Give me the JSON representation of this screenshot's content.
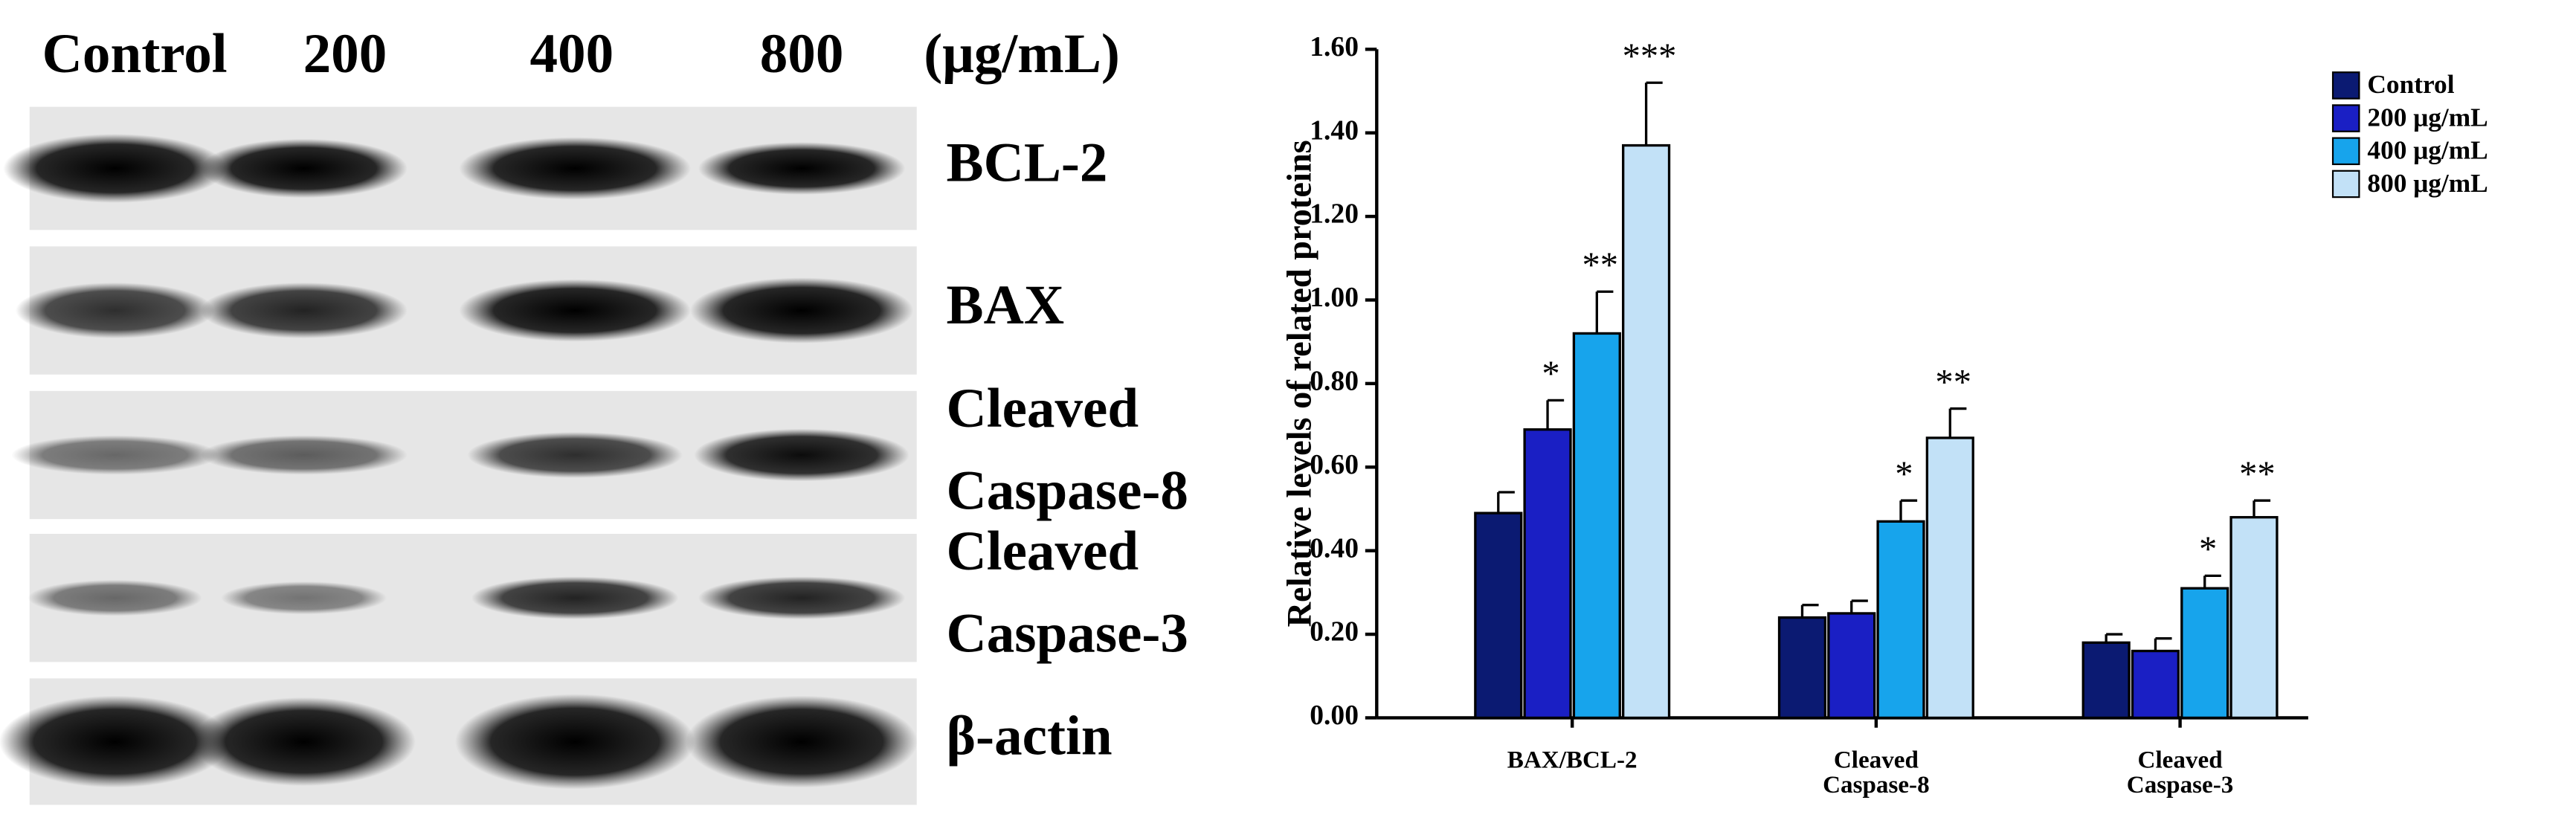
{
  "blot": {
    "columns": [
      "Control",
      "200",
      "400",
      "800"
    ],
    "unit": "(μg/mL)",
    "rows": [
      [
        "BCL-2"
      ],
      [
        "BAX"
      ],
      [
        "Cleaved",
        "Caspase-8"
      ],
      [
        "Cleaved",
        "Caspase-3"
      ],
      [
        "β-actin"
      ]
    ]
  },
  "chart_data": {
    "type": "bar",
    "y_label": "Relative levels of related proteins",
    "categories": [
      [
        "BAX/BCL-2"
      ],
      [
        "Cleaved",
        "Caspase-8"
      ],
      [
        "Cleaved",
        "Caspase-3"
      ]
    ],
    "series": [
      {
        "name": "Control",
        "color": "#0b1a72",
        "values": [
          0.49,
          0.24,
          0.18
        ],
        "errors": [
          0.05,
          0.03,
          0.02
        ],
        "annotations": [
          null,
          null,
          null
        ]
      },
      {
        "name": "200 μg/mL",
        "color": "#1a1fc4",
        "values": [
          0.69,
          0.25,
          0.16
        ],
        "errors": [
          0.07,
          0.03,
          0.03
        ],
        "annotations": [
          "*",
          null,
          null
        ]
      },
      {
        "name": "400 μg/mL",
        "color": "#17a4ec",
        "values": [
          0.92,
          0.47,
          0.31
        ],
        "errors": [
          0.1,
          0.05,
          0.03
        ],
        "annotations": [
          "**",
          "*",
          "*"
        ]
      },
      {
        "name": "800 μg/mL",
        "color": "#c2e1f7",
        "values": [
          1.37,
          0.67,
          0.48
        ],
        "errors": [
          0.15,
          0.07,
          0.04
        ],
        "annotations": [
          "***",
          "**",
          "**"
        ]
      }
    ],
    "ylim": [
      0,
      1.6
    ],
    "yticks": [
      {
        "value": 0,
        "label": "0.00"
      },
      {
        "value": 0.2,
        "label": "0.20"
      },
      {
        "value": 0.4,
        "label": "0.40"
      },
      {
        "value": 0.6,
        "label": "0.60"
      },
      {
        "value": 0.8,
        "label": "0.80"
      },
      {
        "value": 1.0,
        "label": "1.00"
      },
      {
        "value": 1.2,
        "label": "1.20"
      },
      {
        "value": 1.4,
        "label": "1.40"
      },
      {
        "value": 1.6,
        "label": "1.60"
      }
    ],
    "legend": "top-right"
  }
}
